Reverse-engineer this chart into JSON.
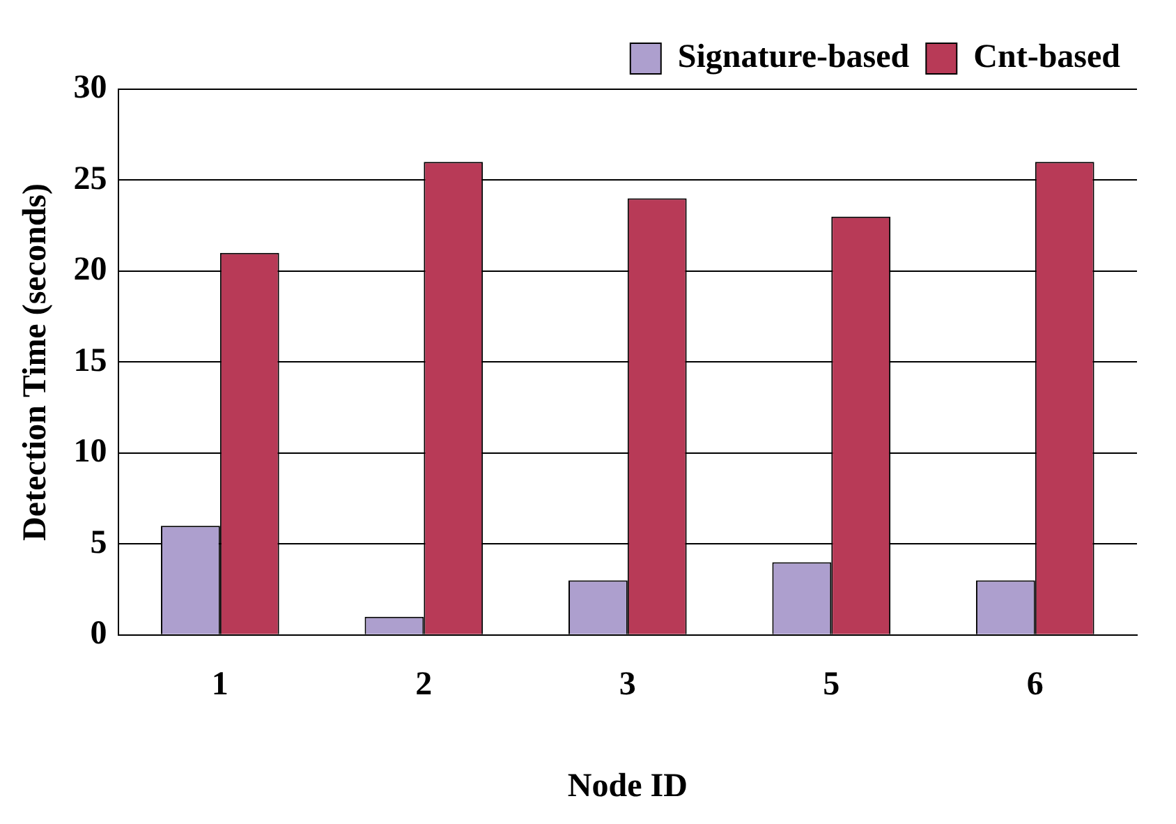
{
  "chart_data": {
    "type": "bar",
    "xlabel": "Node ID",
    "ylabel": "Detection Time (seconds)",
    "categories": [
      "1",
      "2",
      "3",
      "5",
      "6"
    ],
    "series": [
      {
        "name": "Signature-based",
        "color": "#ad9fce",
        "values": [
          6,
          1,
          3,
          4,
          3
        ]
      },
      {
        "name": "Cnt-based",
        "color": "#b83a57",
        "values": [
          21,
          26,
          24,
          23,
          26
        ]
      }
    ],
    "ylim": [
      0,
      30
    ],
    "yticks": [
      0,
      5,
      10,
      15,
      20,
      25,
      30
    ],
    "grid": "y",
    "legend": "top right"
  }
}
